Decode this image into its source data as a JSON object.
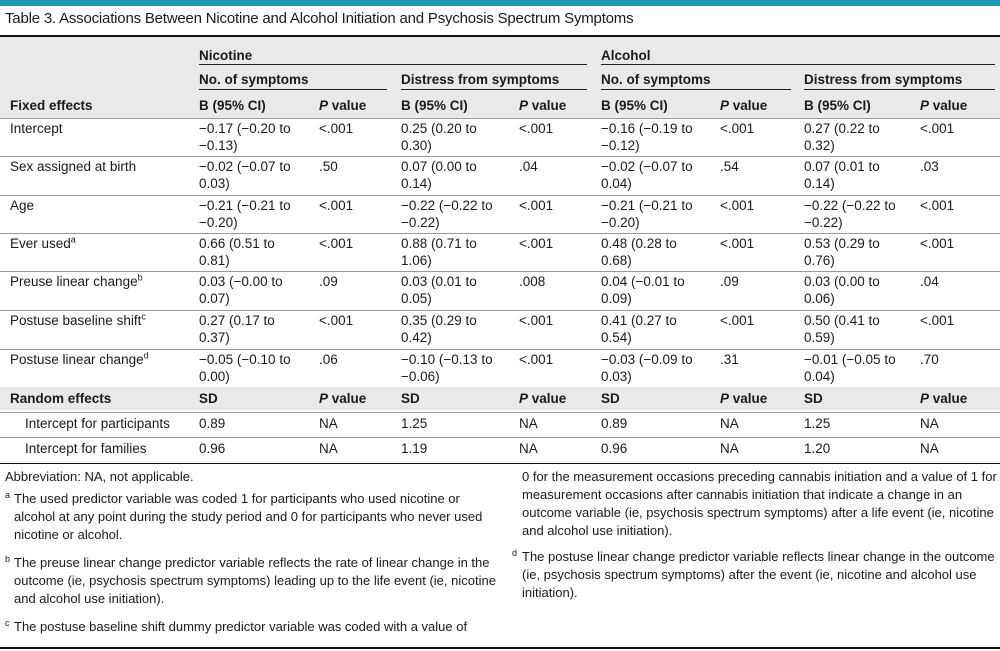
{
  "title": "Table 3. Associations Between Nicotine and Alcohol Initiation and Psychosis Spectrum Symptoms",
  "header": {
    "groups": [
      "Nicotine",
      "Alcohol"
    ],
    "subgroups": [
      "No. of symptoms",
      "Distress from symptoms",
      "No. of symptoms",
      "Distress from symptoms"
    ],
    "fixed_label": "Fixed effects",
    "col_b": "B (95% CI)",
    "col_p_italic": "P",
    "col_p_rest": " value"
  },
  "fixed_rows": [
    {
      "label": "Intercept",
      "sup": "",
      "cells": [
        "−0.17 (−0.20 to\n−0.13)",
        "<.001",
        "0.25 (0.20 to\n0.30)",
        "<.001",
        "−0.16 (−0.19 to\n−0.12)",
        "<.001",
        "0.27 (0.22 to\n0.32)",
        "<.001"
      ]
    },
    {
      "label": "Sex assigned at birth",
      "sup": "",
      "cells": [
        "−0.02 (−0.07 to\n0.03)",
        ".50",
        "0.07 (0.00 to\n0.14)",
        ".04",
        "−0.02 (−0.07 to\n0.04)",
        ".54",
        "0.07 (0.01 to\n0.14)",
        ".03"
      ]
    },
    {
      "label": "Age",
      "sup": "",
      "cells": [
        "−0.21 (−0.21 to\n−0.20)",
        "<.001",
        "−0.22 (−0.22 to\n−0.22)",
        "<.001",
        "−0.21 (−0.21 to\n−0.20)",
        "<.001",
        "−0.22 (−0.22 to\n−0.22)",
        "<.001"
      ]
    },
    {
      "label": "Ever used",
      "sup": "a",
      "cells": [
        "0.66 (0.51 to\n0.81)",
        "<.001",
        "0.88 (0.71 to\n1.06)",
        "<.001",
        "0.48 (0.28 to\n0.68)",
        "<.001",
        "0.53 (0.29 to\n0.76)",
        "<.001"
      ]
    },
    {
      "label": "Preuse linear change",
      "sup": "b",
      "cells": [
        "0.03 (−0.00 to\n0.07)",
        ".09",
        "0.03 (0.01 to\n0.05)",
        ".008",
        "0.04 (−0.01 to\n0.09)",
        ".09",
        "0.03 (0.00 to\n0.06)",
        ".04"
      ]
    },
    {
      "label": "Postuse baseline shift",
      "sup": "c",
      "cells": [
        "0.27 (0.17 to\n0.37)",
        "<.001",
        "0.35 (0.29 to\n0.42)",
        "<.001",
        "0.41 (0.27 to\n0.54)",
        "<.001",
        "0.50 (0.41 to\n0.59)",
        "<.001"
      ]
    },
    {
      "label": "Postuse linear change",
      "sup": "d",
      "cells": [
        "−0.05 (−0.10 to\n0.00)",
        ".06",
        "−0.10 (−0.13 to\n−0.06)",
        "<.001",
        "−0.03 (−0.09 to\n0.03)",
        ".31",
        "−0.01 (−0.05 to\n0.04)",
        ".70"
      ]
    }
  ],
  "random_header": {
    "label": "Random effects",
    "sd": "SD",
    "p_italic": "P",
    "p_rest": " value"
  },
  "random_rows": [
    {
      "label": "Intercept for participants",
      "cells": [
        "0.89",
        "NA",
        "1.25",
        "NA",
        "0.89",
        "NA",
        "1.25",
        "NA"
      ]
    },
    {
      "label": "Intercept for families",
      "cells": [
        "0.96",
        "NA",
        "1.19",
        "NA",
        "0.96",
        "NA",
        "1.20",
        "NA"
      ]
    }
  ],
  "footnotes": {
    "abbrev": "Abbreviation: NA, not applicable.",
    "a": {
      "mark": "a",
      "text": "The used predictor variable was coded 1 for participants who used nicotine or alcohol at any point during the study period and 0 for participants who never used nicotine or alcohol."
    },
    "b": {
      "mark": "b",
      "text": "The preuse linear change predictor variable reflects the rate of linear change in the outcome (ie, psychosis spectrum symptoms) leading up to the life event (ie, nicotine and alcohol use initiation)."
    },
    "c": {
      "mark": "c",
      "text": "The postuse baseline shift dummy predictor variable was coded with a value of"
    },
    "c_cont": "0 for the measurement occasions preceding cannabis initiation and a value of 1 for measurement occasions after cannabis initiation that indicate a change in an outcome variable (ie, psychosis spectrum symptoms) after a life event (ie, nicotine and alcohol use initiation).",
    "d": {
      "mark": "d",
      "text": "The postuse linear change predictor variable reflects linear change in the outcome (ie, psychosis spectrum symptoms) after the event (ie, nicotine and alcohol use initiation)."
    }
  }
}
